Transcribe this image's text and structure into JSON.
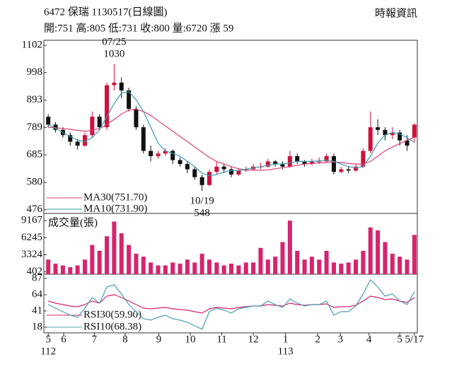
{
  "header": {
    "title": "6472  保瑞 1130517(日線圖)",
    "summary": "開:751 高:805 低:731 收:800 量:6720 漲 59",
    "source": "時報資訊"
  },
  "chart_data": [
    {
      "type": "candlestick",
      "x": [
        0,
        1,
        2,
        3,
        4,
        5,
        6,
        7,
        8,
        9,
        10,
        11,
        12,
        13,
        14,
        15,
        16,
        17,
        18,
        19,
        20,
        21,
        22,
        23,
        24,
        25,
        26,
        27,
        28,
        29,
        30,
        31,
        32,
        33,
        34,
        35,
        36,
        37,
        38,
        39,
        40,
        41,
        42,
        43,
        44,
        45,
        46,
        47,
        48,
        49,
        50
      ],
      "open": [
        830,
        800,
        780,
        760,
        735,
        720,
        760,
        830,
        790,
        950,
        960,
        930,
        860,
        790,
        700,
        680,
        690,
        700,
        665,
        650,
        630,
        600,
        570,
        620,
        640,
        630,
        610,
        625,
        630,
        640,
        640,
        660,
        650,
        640,
        680,
        660,
        650,
        660,
        660,
        680,
        620,
        630,
        625,
        640,
        700,
        790,
        780,
        760,
        770,
        740,
        751
      ],
      "high": [
        840,
        810,
        790,
        770,
        745,
        770,
        850,
        840,
        960,
        1030,
        980,
        940,
        870,
        800,
        720,
        700,
        710,
        705,
        675,
        660,
        640,
        610,
        630,
        660,
        650,
        640,
        635,
        640,
        650,
        655,
        670,
        665,
        660,
        700,
        690,
        665,
        670,
        675,
        690,
        690,
        640,
        640,
        650,
        710,
        850,
        820,
        790,
        790,
        780,
        760,
        805
      ],
      "low": [
        790,
        770,
        750,
        720,
        705,
        715,
        750,
        780,
        780,
        930,
        900,
        850,
        780,
        690,
        660,
        670,
        680,
        650,
        640,
        615,
        590,
        548,
        565,
        610,
        615,
        600,
        605,
        620,
        625,
        630,
        635,
        640,
        630,
        635,
        650,
        640,
        645,
        650,
        655,
        610,
        615,
        615,
        620,
        635,
        690,
        760,
        740,
        745,
        720,
        700,
        731
      ],
      "close": [
        800,
        780,
        760,
        735,
        720,
        760,
        830,
        790,
        950,
        960,
        930,
        860,
        790,
        700,
        680,
        690,
        700,
        665,
        650,
        630,
        600,
        570,
        620,
        640,
        630,
        610,
        625,
        630,
        640,
        640,
        660,
        650,
        640,
        680,
        660,
        650,
        660,
        660,
        680,
        620,
        630,
        625,
        640,
        700,
        790,
        780,
        760,
        770,
        740,
        720,
        800
      ],
      "up_color": "#d0103a",
      "down_color": "#111111",
      "series": [
        {
          "name": "MA30(751.70)",
          "color": "#e0407a",
          "values": [
            790,
            788,
            785,
            782,
            778,
            775,
            778,
            785,
            800,
            820,
            840,
            855,
            858,
            850,
            835,
            815,
            795,
            775,
            755,
            735,
            715,
            695,
            675,
            660,
            650,
            640,
            632,
            628,
            626,
            626,
            628,
            632,
            636,
            640,
            645,
            650,
            652,
            654,
            656,
            658,
            656,
            652,
            650,
            650,
            660,
            680,
            700,
            715,
            728,
            740,
            752
          ]
        },
        {
          "name": "MA10(731.90)",
          "color": "#3a9fb0",
          "values": [
            800,
            785,
            770,
            755,
            740,
            735,
            750,
            780,
            830,
            880,
            920,
            925,
            895,
            850,
            790,
            730,
            700,
            690,
            680,
            660,
            640,
            615,
            605,
            610,
            620,
            625,
            625,
            630,
            635,
            640,
            645,
            650,
            650,
            655,
            660,
            660,
            660,
            662,
            665,
            660,
            650,
            640,
            635,
            640,
            680,
            730,
            760,
            770,
            765,
            750,
            732
          ]
        }
      ],
      "annotations": [
        {
          "x": 9,
          "date": "07/25",
          "value": 1030
        },
        {
          "x": 21,
          "date": "10/19",
          "value": 548
        }
      ],
      "ylim": [
        462,
        1121
      ],
      "yticks": [
        476,
        580,
        685,
        789,
        893,
        998,
        1102
      ]
    },
    {
      "type": "bar",
      "title": "成交量(張)",
      "color": "#d6246e",
      "values": [
        2500,
        1800,
        1500,
        1200,
        1500,
        2500,
        5000,
        4000,
        6500,
        9000,
        7000,
        5000,
        3500,
        3000,
        2000,
        1500,
        1500,
        2000,
        1800,
        2500,
        2000,
        3500,
        2500,
        2000,
        1500,
        1800,
        1500,
        2000,
        2000,
        4500,
        2500,
        3000,
        5500,
        9167,
        4000,
        2500,
        3000,
        2500,
        4000,
        2000,
        1800,
        2000,
        2500,
        4000,
        8000,
        7500,
        5500,
        3500,
        3000,
        2500,
        6720
      ],
      "ylim": [
        0,
        10400
      ],
      "yticks": [
        402,
        3324,
        6245,
        9167
      ]
    },
    {
      "type": "line",
      "series": [
        {
          "name": "RSI30(59.90)",
          "color": "#d6246e",
          "values": [
            55,
            52,
            50,
            48,
            47,
            50,
            55,
            52,
            62,
            64,
            60,
            55,
            50,
            45,
            44,
            45,
            46,
            44,
            43,
            42,
            40,
            38,
            44,
            46,
            45,
            44,
            46,
            47,
            48,
            48,
            50,
            49,
            48,
            52,
            50,
            49,
            50,
            50,
            51,
            46,
            47,
            47,
            49,
            55,
            62,
            60,
            57,
            58,
            55,
            53,
            59.9
          ]
        },
        {
          "name": "RSI10(68.38)",
          "color": "#4a9fb0",
          "values": [
            50,
            45,
            40,
            35,
            32,
            45,
            60,
            52,
            75,
            78,
            65,
            50,
            40,
            30,
            28,
            32,
            35,
            30,
            28,
            25,
            20,
            15,
            40,
            45,
            42,
            38,
            44,
            46,
            48,
            48,
            55,
            50,
            46,
            58,
            52,
            48,
            50,
            50,
            55,
            35,
            40,
            40,
            48,
            65,
            85,
            75,
            62,
            65,
            55,
            50,
            68.38
          ]
        }
      ],
      "ylim": [
        10,
        93
      ],
      "yticks": [
        18,
        41,
        64,
        87
      ],
      "xlim": [
        -0.6,
        50.4
      ],
      "xticks": [
        {
          "value": 0,
          "label": "5"
        },
        {
          "value": 2.1,
          "label": "6"
        },
        {
          "value": 6.3,
          "label": "7"
        },
        {
          "value": 10.5,
          "label": "8"
        },
        {
          "value": 15.1,
          "label": "9"
        },
        {
          "value": 19.4,
          "label": "10"
        },
        {
          "value": 23.7,
          "label": "11"
        },
        {
          "value": 28,
          "label": "12"
        },
        {
          "value": 32.4,
          "label": "1"
        },
        {
          "value": 36.8,
          "label": "2"
        },
        {
          "value": 39.9,
          "label": "3"
        },
        {
          "value": 43.8,
          "label": "4"
        },
        {
          "value": 48,
          "label": "5"
        },
        {
          "value": 50,
          "label": "5/17"
        }
      ],
      "year_ticks": [
        {
          "value": 0,
          "label": "112"
        },
        {
          "value": 32.4,
          "label": "113"
        }
      ]
    }
  ]
}
